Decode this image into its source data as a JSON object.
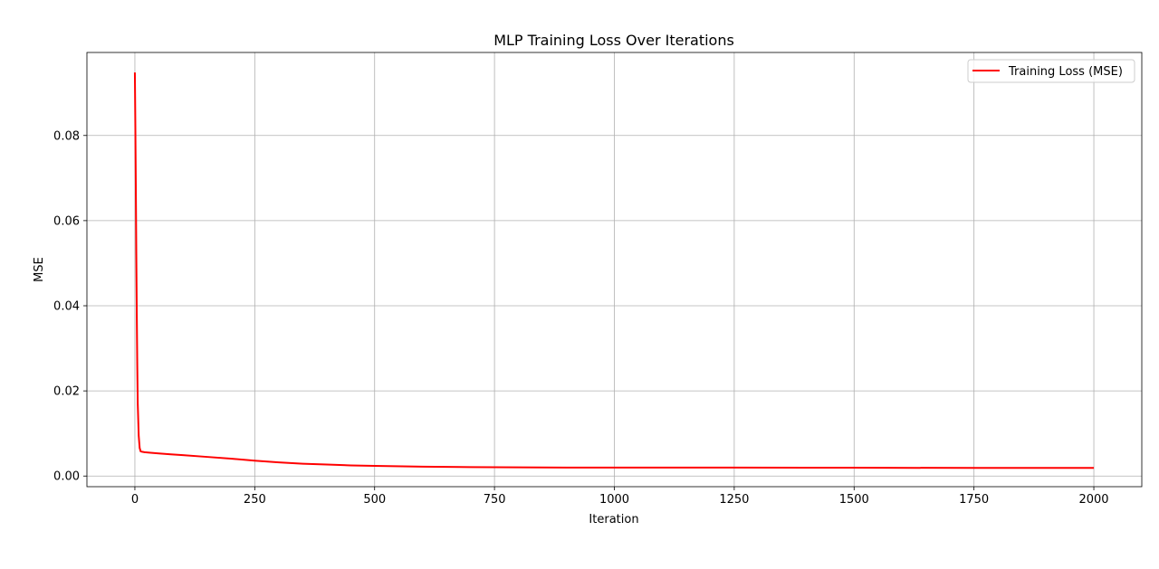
{
  "chart_data": {
    "type": "line",
    "title": "MLP Training Loss Over Iterations",
    "xlabel": "Iteration",
    "ylabel": "MSE",
    "xlim": [
      -100,
      2100
    ],
    "ylim": [
      -0.0025,
      0.0995
    ],
    "xticks": [
      0,
      250,
      500,
      750,
      1000,
      1250,
      1500,
      1750,
      2000
    ],
    "xtick_labels": [
      "0",
      "250",
      "500",
      "750",
      "1000",
      "1250",
      "1500",
      "1750",
      "2000"
    ],
    "yticks": [
      0.0,
      0.02,
      0.04,
      0.06,
      0.08
    ],
    "ytick_labels": [
      "0.00",
      "0.02",
      "0.04",
      "0.06",
      "0.08"
    ],
    "grid": true,
    "legend_position": "upper right",
    "series": [
      {
        "name": "Training Loss (MSE)",
        "color": "#ff0000",
        "x": [
          0,
          1,
          2,
          3,
          4,
          5,
          6,
          8,
          10,
          12,
          15,
          20,
          30,
          50,
          75,
          100,
          150,
          200,
          250,
          300,
          350,
          400,
          450,
          500,
          600,
          700,
          800,
          900,
          1000,
          1250,
          1500,
          1750,
          2000
        ],
        "y": [
          0.0948,
          0.082,
          0.068,
          0.052,
          0.038,
          0.026,
          0.017,
          0.0095,
          0.0066,
          0.0058,
          0.0057,
          0.0056,
          0.0055,
          0.0053,
          0.0051,
          0.0049,
          0.0045,
          0.0041,
          0.0036,
          0.0032,
          0.0029,
          0.0027,
          0.0025,
          0.0024,
          0.0022,
          0.0021,
          0.00205,
          0.002,
          0.002,
          0.002,
          0.00195,
          0.0019,
          0.0019
        ]
      }
    ]
  }
}
